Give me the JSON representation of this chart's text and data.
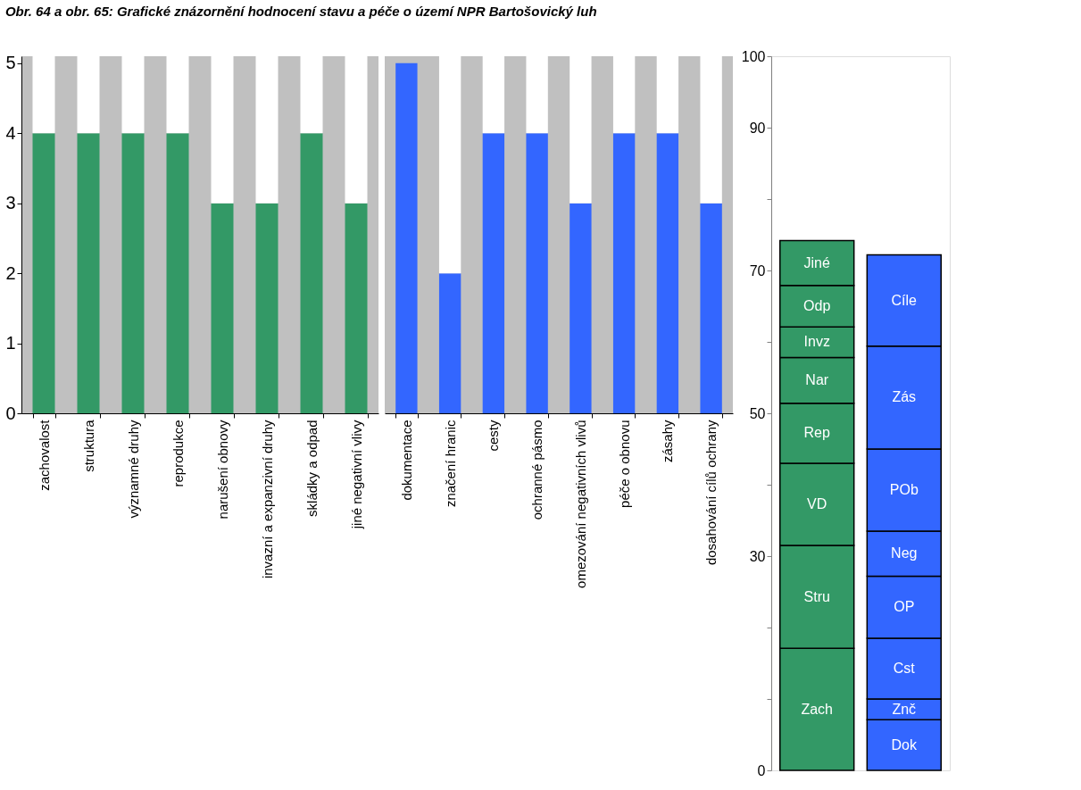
{
  "chart_data": [
    {
      "type": "bar",
      "stacked": true,
      "title": "Obr. 64 a obr. 65: Grafické znázornění hodnocení stavu a péče o území NPR Bartošovický luh",
      "categories": [
        "zachovalost",
        "struktura",
        "významné druhy",
        "reprodukce",
        "narušení obnovy",
        "invazní a expanzivní druhy",
        "skládky a odpad",
        "jiné negativní vlivy"
      ],
      "series": [
        {
          "color": "#339966",
          "values": [
            4,
            4,
            4,
            4,
            3,
            3,
            4,
            3
          ]
        },
        {
          "color": "#ffffff",
          "values": [
            1.1,
            1.1,
            1.1,
            1.1,
            2.1,
            2.1,
            1.1,
            2.1
          ]
        }
      ],
      "ylim": [
        0,
        5.1
      ],
      "yticks": [
        0,
        1,
        2,
        3,
        4,
        5
      ],
      "grid": false
    },
    {
      "type": "bar",
      "stacked": true,
      "categories": [
        "dokumentace",
        "značení hranic",
        "cesty",
        "ochranné pásmo",
        "omezování negativních vlivů",
        "péče o obnovu",
        "zásahy",
        "dosahování cílů ochrany"
      ],
      "series": [
        {
          "color": "#3366ff",
          "values": [
            5,
            2,
            4,
            4,
            3,
            4,
            4,
            3
          ]
        },
        {
          "color": "#ffffff",
          "values": [
            null,
            3.1,
            1.1,
            1.1,
            2.1,
            1.1,
            1.1,
            2.1
          ]
        }
      ],
      "ylim": [
        0,
        5.1
      ],
      "yticks": [
        0,
        1,
        2,
        3,
        4,
        5
      ],
      "tick_labels": "x",
      "grid": false
    },
    {
      "type": "bar",
      "stacked": true,
      "categories": [
        null,
        null
      ],
      "tick_labels": "y",
      "grid": false,
      "series": [
        {
          "name": "Zach",
          "color": "#339966",
          "values": [
            17.1,
            null
          ]
        },
        {
          "name": "Stru",
          "color": "#339966",
          "values": [
            14.4,
            null
          ]
        },
        {
          "name": "VD",
          "color": "#339966",
          "values": [
            11.5,
            null
          ]
        },
        {
          "name": "Rep",
          "color": "#339966",
          "values": [
            8.4,
            null
          ]
        },
        {
          "name": "Nar",
          "color": "#339966",
          "values": [
            6.4,
            null
          ]
        },
        {
          "name": "Invz",
          "color": "#339966",
          "values": [
            4.3,
            null
          ]
        },
        {
          "name": "Odp",
          "color": "#339966",
          "values": [
            5.8,
            null
          ]
        },
        {
          "name": "Jiné",
          "color": "#339966",
          "values": [
            6.3,
            null
          ]
        },
        {
          "name": "Dok",
          "color": "#3366ff",
          "values": [
            null,
            7.1
          ]
        },
        {
          "name": "Znč",
          "color": "#3366ff",
          "values": [
            null,
            2.9
          ]
        },
        {
          "name": "Cst",
          "color": "#3366ff",
          "values": [
            null,
            8.5
          ]
        },
        {
          "name": "OP",
          "color": "#3366ff",
          "values": [
            null,
            8.7
          ]
        },
        {
          "name": "Neg",
          "color": "#3366ff",
          "values": [
            null,
            6.3
          ]
        },
        {
          "name": "POb",
          "color": "#3366ff",
          "values": [
            null,
            11.5
          ]
        },
        {
          "name": "Zás",
          "color": "#3366ff",
          "values": [
            null,
            14.4
          ]
        },
        {
          "name": "Cíle",
          "color": "#3366ff",
          "values": [
            null,
            12.8
          ]
        }
      ],
      "ylim": [
        0,
        100
      ],
      "yticks": [
        0,
        {
          "value": 10,
          "label": null
        },
        {
          "value": 20,
          "label": null
        },
        30,
        {
          "value": 40,
          "label": null
        },
        50,
        {
          "value": 60,
          "label": null
        },
        70,
        {
          "value": 80,
          "label": null
        },
        90,
        100
      ]
    }
  ]
}
